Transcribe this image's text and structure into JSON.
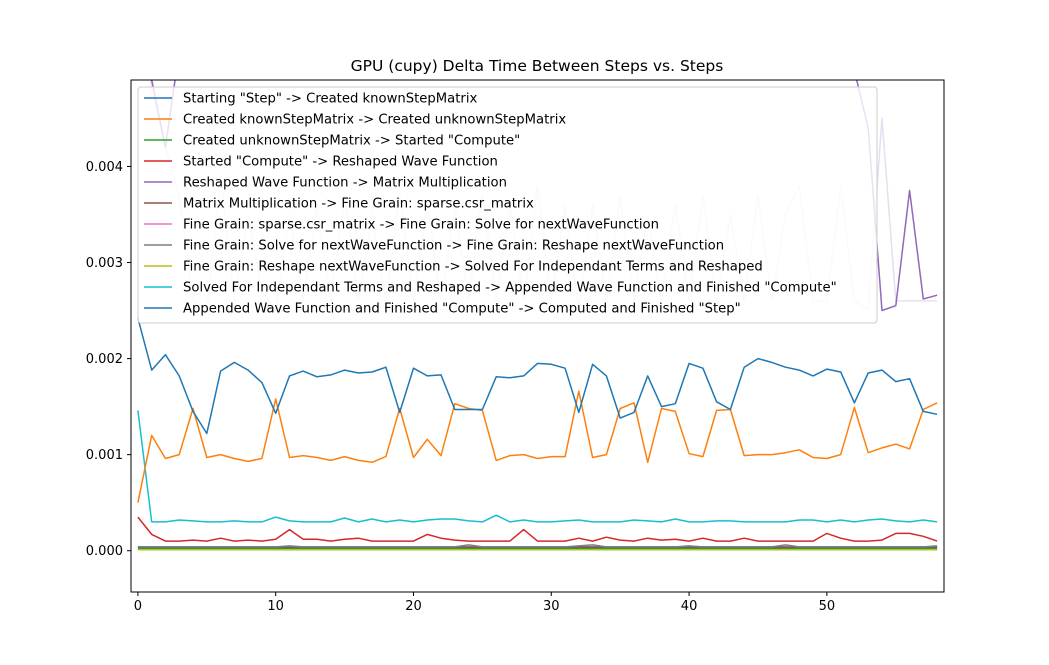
{
  "chart_data": {
    "type": "line",
    "title": "GPU (cupy) Delta Time Between Steps vs. Steps",
    "xlabel": "",
    "ylabel": "",
    "xlim": [
      -0.5,
      58.5
    ],
    "ylim": [
      -0.00043,
      0.0049
    ],
    "xticks": [
      0,
      10,
      20,
      30,
      40,
      50
    ],
    "xtick_labels": [
      "0",
      "10",
      "20",
      "30",
      "40",
      "50"
    ],
    "yticks": [
      0.0,
      0.001,
      0.002,
      0.003,
      0.004
    ],
    "ytick_labels": [
      "0.000",
      "0.001",
      "0.002",
      "0.003",
      "0.004"
    ],
    "grid": false,
    "legend_position": "top-left",
    "x": [
      0,
      1,
      2,
      3,
      4,
      5,
      6,
      7,
      8,
      9,
      10,
      11,
      12,
      13,
      14,
      15,
      16,
      17,
      18,
      19,
      20,
      21,
      22,
      23,
      24,
      25,
      26,
      27,
      28,
      29,
      30,
      31,
      32,
      33,
      34,
      35,
      36,
      37,
      38,
      39,
      40,
      41,
      42,
      43,
      44,
      45,
      46,
      47,
      48,
      49,
      50,
      51,
      52,
      53,
      54,
      55,
      56,
      57,
      58
    ],
    "series": [
      {
        "name": "Starting \"Step\" -> Created knownStepMatrix",
        "color": "#1f77b4",
        "values": [
          3e-05,
          3e-05,
          3e-05,
          3e-05,
          3e-05,
          3e-05,
          3e-05,
          3e-05,
          3e-05,
          3e-05,
          3e-05,
          3e-05,
          3e-05,
          3e-05,
          3e-05,
          3e-05,
          3e-05,
          3e-05,
          3e-05,
          3e-05,
          3e-05,
          3e-05,
          3e-05,
          3e-05,
          3e-05,
          3e-05,
          3e-05,
          3e-05,
          3e-05,
          3e-05,
          3e-05,
          3e-05,
          3e-05,
          3e-05,
          3e-05,
          3e-05,
          3e-05,
          3e-05,
          3e-05,
          3e-05,
          3e-05,
          3e-05,
          3e-05,
          3e-05,
          3e-05,
          3e-05,
          3e-05,
          3e-05,
          3e-05,
          3e-05,
          3e-05,
          3e-05,
          3e-05,
          3e-05,
          3e-05,
          3e-05,
          3e-05,
          3e-05,
          3e-05
        ]
      },
      {
        "name": "Created knownStepMatrix -> Created unknownStepMatrix",
        "color": "#ff7f0e",
        "values": [
          0.0005,
          0.0012,
          0.00096,
          0.001,
          0.00148,
          0.00097,
          0.001,
          0.00096,
          0.00093,
          0.00096,
          0.00158,
          0.00097,
          0.00099,
          0.00097,
          0.00094,
          0.00098,
          0.00094,
          0.00092,
          0.00098,
          0.00148,
          0.00097,
          0.00116,
          0.00099,
          0.00153,
          0.00148,
          0.00146,
          0.00094,
          0.00099,
          0.001,
          0.00096,
          0.00098,
          0.00098,
          0.00166,
          0.00097,
          0.001,
          0.00148,
          0.00154,
          0.00092,
          0.00148,
          0.00145,
          0.00101,
          0.00098,
          0.00146,
          0.00147,
          0.00099,
          0.001,
          0.001,
          0.00102,
          0.00105,
          0.00097,
          0.00096,
          0.001,
          0.00149,
          0.00102,
          0.00107,
          0.00111,
          0.00106,
          0.00147,
          0.00154
        ]
      },
      {
        "name": "Created unknownStepMatrix -> Started \"Compute\"",
        "color": "#2ca02c",
        "values": [
          2e-05,
          2e-05,
          2e-05,
          2e-05,
          2e-05,
          2e-05,
          2e-05,
          2e-05,
          2e-05,
          2e-05,
          2e-05,
          2e-05,
          2e-05,
          2e-05,
          2e-05,
          2e-05,
          2e-05,
          2e-05,
          2e-05,
          2e-05,
          2e-05,
          2e-05,
          2e-05,
          2e-05,
          2e-05,
          2e-05,
          2e-05,
          2e-05,
          2e-05,
          2e-05,
          2e-05,
          2e-05,
          2e-05,
          2e-05,
          2e-05,
          2e-05,
          2e-05,
          2e-05,
          2e-05,
          2e-05,
          2e-05,
          2e-05,
          2e-05,
          2e-05,
          2e-05,
          2e-05,
          2e-05,
          2e-05,
          2e-05,
          2e-05,
          2e-05,
          2e-05,
          2e-05,
          2e-05,
          2e-05,
          2e-05,
          2e-05,
          2e-05,
          2e-05
        ]
      },
      {
        "name": "Started \"Compute\" -> Reshaped Wave Function",
        "color": "#d62728",
        "values": [
          0.00035,
          0.00017,
          0.0001,
          0.0001,
          0.00011,
          0.0001,
          0.00013,
          0.0001,
          0.00011,
          0.0001,
          0.00012,
          0.00022,
          0.00012,
          0.00012,
          0.0001,
          0.00012,
          0.00013,
          0.0001,
          0.0001,
          0.0001,
          0.0001,
          0.00017,
          0.00013,
          0.00011,
          0.0001,
          0.0001,
          0.0001,
          0.0001,
          0.00022,
          0.0001,
          0.0001,
          0.0001,
          0.00013,
          0.0001,
          0.00014,
          0.00011,
          0.0001,
          0.00013,
          0.00011,
          0.00012,
          0.0001,
          0.00013,
          0.0001,
          0.0001,
          0.00013,
          0.0001,
          0.0001,
          0.0001,
          0.0001,
          0.0001,
          0.00018,
          0.00013,
          0.0001,
          0.0001,
          0.00011,
          0.00018,
          0.00018,
          0.00015,
          0.0001
        ]
      },
      {
        "name": "Reshaped Wave Function -> Matrix Multiplication",
        "color": "#9467bd",
        "values": [
          0.0066,
          0.0049,
          0.0042,
          0.0052,
          0.005,
          0.005,
          0.005,
          0.005,
          0.005,
          0.005,
          0.005,
          0.005,
          0.005,
          0.005,
          0.005,
          0.005,
          0.005,
          0.005,
          0.005,
          0.005,
          0.005,
          0.005,
          0.005,
          0.005,
          0.005,
          0.005,
          0.005,
          0.005,
          0.005,
          0.005,
          0.005,
          0.005,
          0.005,
          0.005,
          0.005,
          0.005,
          0.005,
          0.005,
          0.005,
          0.005,
          0.005,
          0.005,
          0.005,
          0.005,
          0.005,
          0.005,
          0.005,
          0.005,
          0.005,
          0.005,
          0.005,
          0.005,
          0.005,
          0.0044,
          0.0025,
          0.00255,
          0.00375,
          0.00262,
          0.00266
        ]
      },
      {
        "name": "Matrix Multiplication -> Fine Grain: sparse.csr_matrix",
        "color": "#8c564b",
        "values": [
          4e-05,
          4e-05,
          4e-05,
          4e-05,
          4e-05,
          4e-05,
          4e-05,
          4e-05,
          4e-05,
          4e-05,
          4e-05,
          4e-05,
          4e-05,
          4e-05,
          4e-05,
          4e-05,
          4e-05,
          4e-05,
          4e-05,
          4e-05,
          4e-05,
          4e-05,
          4e-05,
          4e-05,
          4e-05,
          4e-05,
          4e-05,
          4e-05,
          4e-05,
          4e-05,
          4e-05,
          4e-05,
          4e-05,
          4e-05,
          4e-05,
          4e-05,
          4e-05,
          4e-05,
          4e-05,
          4e-05,
          4e-05,
          4e-05,
          4e-05,
          4e-05,
          4e-05,
          4e-05,
          4e-05,
          4e-05,
          4e-05,
          4e-05,
          4e-05,
          4e-05,
          4e-05,
          4e-05,
          4e-05,
          4e-05,
          4e-05,
          4e-05,
          4e-05
        ]
      },
      {
        "name": "Fine Grain: sparse.csr_matrix -> Fine Grain: Solve for nextWaveFunction",
        "color": "#e377c2",
        "values": [
          1e-05,
          1e-05,
          1e-05,
          1e-05,
          1e-05,
          1e-05,
          1e-05,
          1e-05,
          1e-05,
          1e-05,
          1e-05,
          1e-05,
          1e-05,
          1e-05,
          1e-05,
          1e-05,
          1e-05,
          1e-05,
          1e-05,
          1e-05,
          1e-05,
          1e-05,
          1e-05,
          1e-05,
          1e-05,
          1e-05,
          1e-05,
          1e-05,
          1e-05,
          1e-05,
          1e-05,
          1e-05,
          1e-05,
          1e-05,
          1e-05,
          1e-05,
          1e-05,
          1e-05,
          1e-05,
          1e-05,
          1e-05,
          1e-05,
          1e-05,
          1e-05,
          1e-05,
          1e-05,
          1e-05,
          1e-05,
          1e-05,
          1e-05,
          1e-05,
          1e-05,
          1e-05,
          1e-05,
          1e-05,
          1e-05,
          1e-05,
          1e-05,
          1e-05
        ]
      },
      {
        "name": "Fine Grain: Solve for nextWaveFunction -> Fine Grain: Reshape nextWaveFunction",
        "color": "#7f7f7f",
        "values": [
          4e-05,
          4e-05,
          4e-05,
          4e-05,
          4e-05,
          4e-05,
          4e-05,
          4e-05,
          4e-05,
          4e-05,
          4e-05,
          5e-05,
          4e-05,
          4e-05,
          4e-05,
          4e-05,
          4e-05,
          4e-05,
          4e-05,
          4e-05,
          4e-05,
          4e-05,
          4e-05,
          4e-05,
          6e-05,
          4e-05,
          4e-05,
          4e-05,
          4e-05,
          4e-05,
          4e-05,
          4e-05,
          5e-05,
          6e-05,
          4e-05,
          4e-05,
          4e-05,
          4e-05,
          4e-05,
          4e-05,
          5e-05,
          4e-05,
          4e-05,
          4e-05,
          4e-05,
          4e-05,
          4e-05,
          6e-05,
          4e-05,
          4e-05,
          4e-05,
          4e-05,
          4e-05,
          4e-05,
          4e-05,
          4e-05,
          4e-05,
          4e-05,
          5e-05
        ]
      },
      {
        "name": "Fine Grain: Reshape nextWaveFunction -> Solved For Independant Terms and Reshaped",
        "color": "#bcbd22",
        "values": [
          1e-05,
          1e-05,
          1e-05,
          1e-05,
          1e-05,
          1e-05,
          1e-05,
          1e-05,
          1e-05,
          1e-05,
          1e-05,
          1e-05,
          1e-05,
          1e-05,
          1e-05,
          1e-05,
          1e-05,
          1e-05,
          1e-05,
          1e-05,
          1e-05,
          1e-05,
          1e-05,
          1e-05,
          1e-05,
          1e-05,
          1e-05,
          1e-05,
          1e-05,
          1e-05,
          1e-05,
          1e-05,
          1e-05,
          1e-05,
          1e-05,
          1e-05,
          1e-05,
          1e-05,
          1e-05,
          1e-05,
          1e-05,
          1e-05,
          1e-05,
          1e-05,
          1e-05,
          1e-05,
          1e-05,
          1e-05,
          1e-05,
          1e-05,
          1e-05,
          1e-05,
          1e-05,
          1e-05,
          1e-05,
          1e-05,
          1e-05,
          1e-05,
          1e-05
        ]
      },
      {
        "name": "Solved For Independant Terms and Reshaped -> Appended Wave Function and Finished \"Compute\"",
        "color": "#17becf",
        "values": [
          0.00146,
          0.0003,
          0.0003,
          0.00032,
          0.00031,
          0.0003,
          0.0003,
          0.00031,
          0.0003,
          0.0003,
          0.00035,
          0.00031,
          0.0003,
          0.0003,
          0.0003,
          0.00034,
          0.0003,
          0.00033,
          0.0003,
          0.00032,
          0.0003,
          0.00032,
          0.00033,
          0.00033,
          0.00031,
          0.0003,
          0.00037,
          0.0003,
          0.00032,
          0.0003,
          0.0003,
          0.00031,
          0.00032,
          0.0003,
          0.0003,
          0.0003,
          0.00032,
          0.00031,
          0.0003,
          0.00033,
          0.0003,
          0.0003,
          0.00031,
          0.00031,
          0.0003,
          0.0003,
          0.0003,
          0.0003,
          0.00032,
          0.00032,
          0.0003,
          0.00032,
          0.0003,
          0.00032,
          0.00033,
          0.00031,
          0.0003,
          0.00032,
          0.0003
        ]
      },
      {
        "name": "Appended Wave Function and Finished \"Compute\" -> Computed and Finished \"Step\"",
        "color": "#1f77b4",
        "values": [
          0.00242,
          0.00188,
          0.00204,
          0.00182,
          0.00145,
          0.00122,
          0.00187,
          0.00196,
          0.00188,
          0.00175,
          0.00143,
          0.00182,
          0.00187,
          0.00181,
          0.00183,
          0.00188,
          0.00185,
          0.00186,
          0.00191,
          0.00144,
          0.0019,
          0.00182,
          0.00183,
          0.00147,
          0.00147,
          0.00147,
          0.00181,
          0.0018,
          0.00182,
          0.00195,
          0.00194,
          0.0019,
          0.00144,
          0.00194,
          0.00182,
          0.00138,
          0.00144,
          0.00182,
          0.0015,
          0.00153,
          0.00195,
          0.0019,
          0.00155,
          0.00147,
          0.00191,
          0.002,
          0.00196,
          0.00191,
          0.00188,
          0.00182,
          0.00189,
          0.00186,
          0.00154,
          0.00185,
          0.00188,
          0.00176,
          0.00179,
          0.00145,
          0.00142
        ]
      }
    ],
    "overlay_series": {
      "color": "#e6dff0",
      "values": [
        0.0069,
        0.0048,
        0.0042,
        0.0037,
        0.0026,
        0.0025,
        0.0039,
        0.0026,
        0.0035,
        0.0027,
        0.0025,
        0.0035,
        0.0026,
        0.0036,
        0.0026,
        0.0037,
        0.0026,
        0.0035,
        0.0026,
        0.0037,
        0.0026,
        0.0036,
        0.0026,
        0.0036,
        0.0026,
        0.0037,
        0.0026,
        0.0036,
        0.0026,
        0.0038,
        0.0026,
        0.0036,
        0.0025,
        0.0036,
        0.0026,
        0.0037,
        0.0026,
        0.0035,
        0.0026,
        0.0036,
        0.0026,
        0.0037,
        0.0026,
        0.0035,
        0.0026,
        0.0037,
        0.0026,
        0.0035,
        0.0038,
        0.0026,
        0.0026,
        0.0038,
        0.0026,
        0.0025,
        0.0045,
        0.0026,
        0.0026,
        0.0026,
        0.0026
      ]
    }
  }
}
